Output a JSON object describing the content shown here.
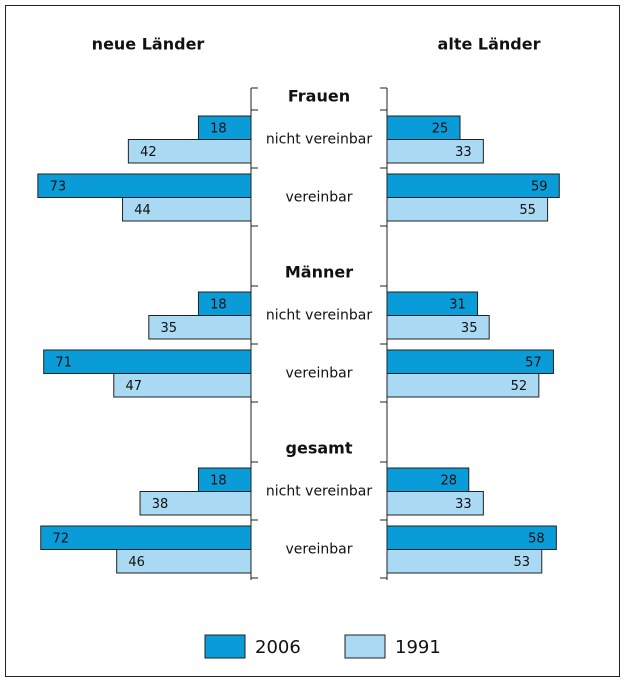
{
  "chart_data": {
    "type": "bar",
    "panels": [
      "neue Länder",
      "alte Länder"
    ],
    "groups": [
      "Frauen",
      "Männer",
      "gesamt"
    ],
    "categories": [
      "nicht vereinbar",
      "vereinbar",
      "nicht vereinbar",
      "vereinbar",
      "nicht vereinbar",
      "vereinbar"
    ],
    "series": [
      {
        "name": "2006",
        "color": "#0a9bd9",
        "values": [
          [
            18,
            73,
            18,
            71,
            18,
            72
          ],
          [
            25,
            59,
            31,
            57,
            28,
            58
          ]
        ]
      },
      {
        "name": "1991",
        "color": "#aad9f3",
        "values": [
          [
            42,
            44,
            35,
            47,
            38,
            46
          ],
          [
            33,
            55,
            35,
            52,
            33,
            53
          ]
        ]
      }
    ],
    "xlim": [
      0,
      75
    ]
  }
}
